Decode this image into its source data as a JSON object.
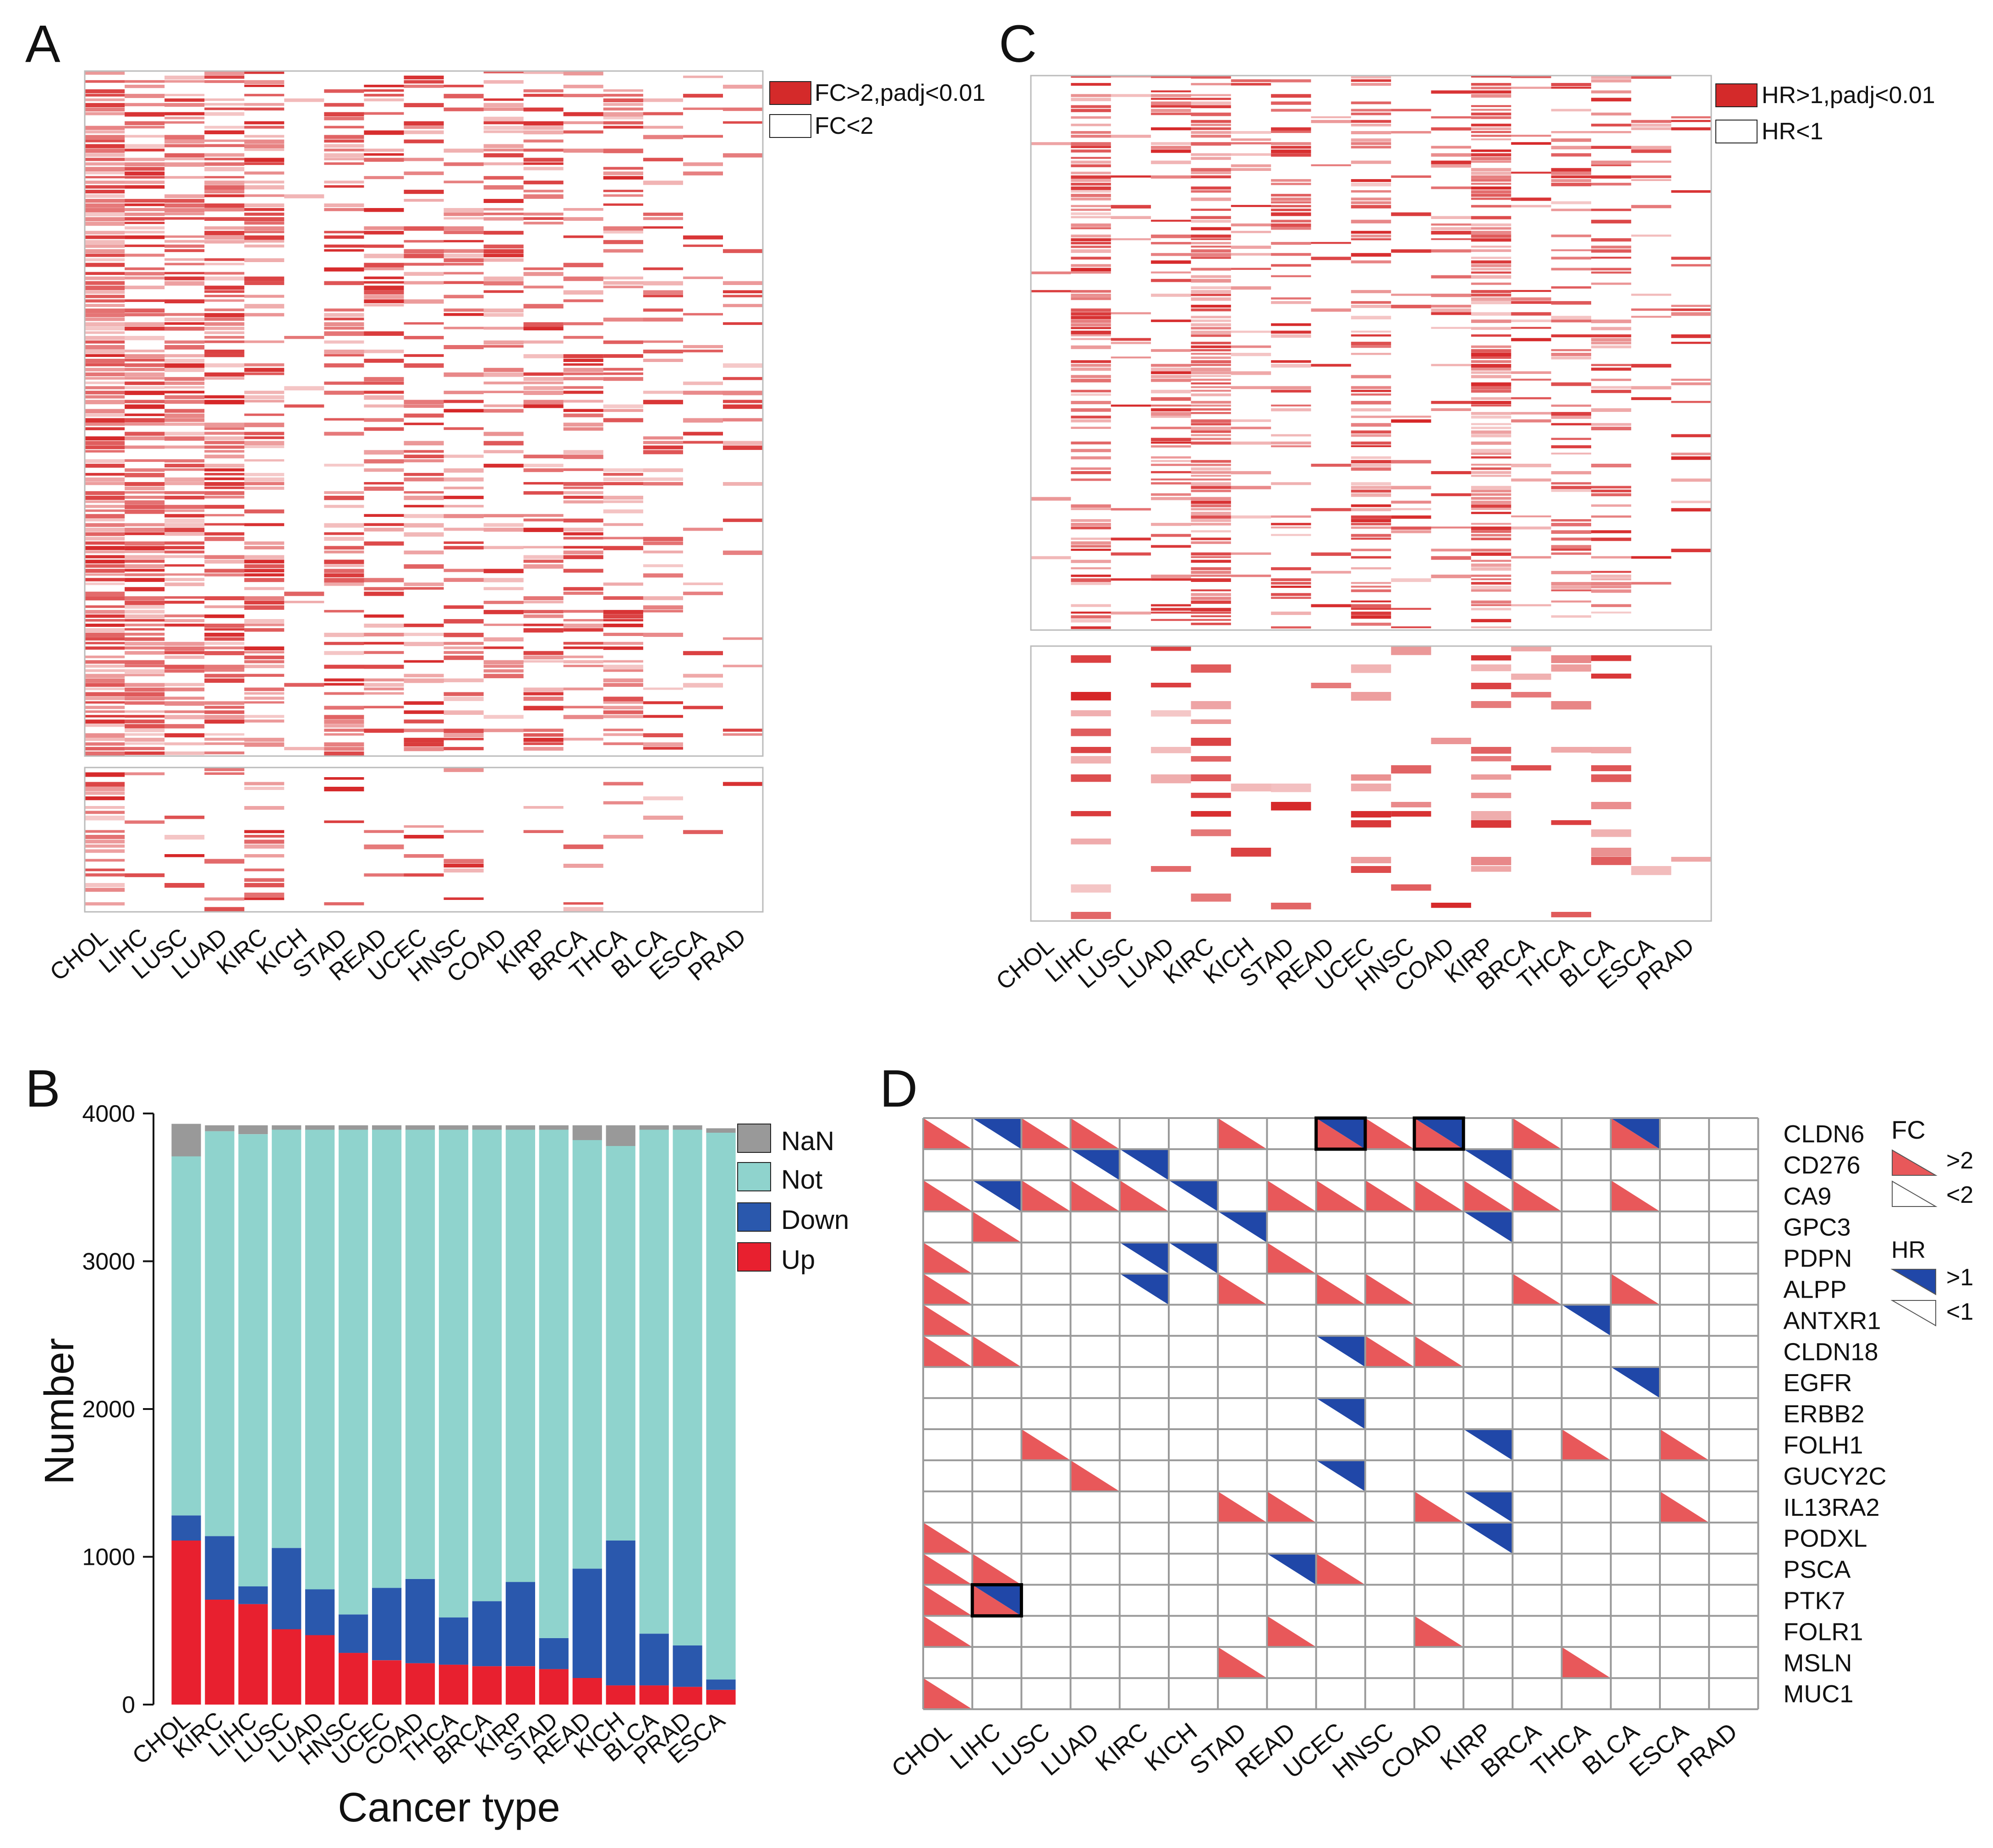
{
  "colors": {
    "red": "#d42a2a",
    "heat_red": "#d62728",
    "blue": "#2a58ad",
    "teal": "#8fd3cd",
    "gray": "#999999",
    "tri_red": "#e8585a",
    "tri_blue": "#2047a8",
    "grid": "#9a9a9a"
  },
  "panels": {
    "A": {
      "letter": "A",
      "legend": [
        "FC>2,padj<0.01",
        "FC<2"
      ]
    },
    "C": {
      "letter": "C",
      "legend": [
        "HR>1,padj<0.01",
        "HR<1"
      ]
    },
    "B": {
      "letter": "B",
      "ylabel": "Number",
      "xlabel": "Cancer type",
      "legend": [
        "NaN",
        "Not",
        "Down",
        "Up"
      ]
    },
    "D": {
      "letter": "D",
      "legend_fc_title": "FC",
      "legend_fc": [
        ">2",
        "<2"
      ],
      "legend_hr_title": "HR",
      "legend_hr": [
        ">1",
        "<1"
      ]
    }
  },
  "chart_data": [
    {
      "id": "A",
      "type": "heatmap",
      "title": "",
      "categories": [
        "CHOL",
        "LIHC",
        "LUSC",
        "LUAD",
        "KIRC",
        "KICH",
        "STAD",
        "READ",
        "UCEC",
        "HNSC",
        "COAD",
        "KIRP",
        "BRCA",
        "THCA",
        "BLCA",
        "ESCA",
        "PRAD"
      ],
      "rows_top": 150,
      "rows_bottom": 30,
      "density_top": [
        0.85,
        0.75,
        0.65,
        0.7,
        0.55,
        0.08,
        0.45,
        0.4,
        0.38,
        0.4,
        0.35,
        0.35,
        0.4,
        0.4,
        0.25,
        0.2,
        0.12
      ],
      "density_bottom": [
        0.6,
        0.12,
        0.08,
        0.12,
        0.45,
        0.02,
        0.06,
        0.08,
        0.1,
        0.12,
        0.05,
        0.05,
        0.12,
        0.1,
        0.05,
        0.05,
        0.06
      ],
      "legend": [
        "FC>2,padj<0.01",
        "FC<2"
      ]
    },
    {
      "id": "C",
      "type": "heatmap",
      "title": "",
      "categories": [
        "CHOL",
        "LIHC",
        "LUSC",
        "LUAD",
        "KIRC",
        "KICH",
        "STAD",
        "READ",
        "UCEC",
        "HNSC",
        "COAD",
        "KIRP",
        "BRCA",
        "THCA",
        "BLCA",
        "ESCA",
        "PRAD"
      ],
      "rows_top": 150,
      "rows_bottom": 30,
      "density_top": [
        0.02,
        0.65,
        0.05,
        0.35,
        0.7,
        0.2,
        0.3,
        0.12,
        0.55,
        0.15,
        0.2,
        0.75,
        0.15,
        0.3,
        0.35,
        0.12,
        0.1
      ],
      "density_bottom": [
        0.01,
        0.3,
        0.02,
        0.2,
        0.4,
        0.1,
        0.15,
        0.06,
        0.3,
        0.1,
        0.1,
        0.4,
        0.08,
        0.15,
        0.2,
        0.06,
        0.05
      ],
      "legend": [
        "HR>1,padj<0.01",
        "HR<1"
      ]
    },
    {
      "id": "B",
      "type": "bar",
      "stacked": true,
      "title": "",
      "xlabel": "Cancer type",
      "ylabel": "Number",
      "ylim": [
        0,
        4000
      ],
      "yticks": [
        0,
        1000,
        2000,
        3000,
        4000
      ],
      "categories": [
        "CHOL",
        "KIRC",
        "LIHC",
        "LUSC",
        "LUAD",
        "HNSC",
        "UCEC",
        "COAD",
        "THCA",
        "BRCA",
        "KIRP",
        "STAD",
        "READ",
        "KICH",
        "BLCA",
        "PRAD",
        "ESCA"
      ],
      "series": [
        {
          "name": "Up",
          "values": [
            1110,
            710,
            680,
            510,
            470,
            350,
            300,
            280,
            270,
            260,
            260,
            240,
            180,
            130,
            130,
            120,
            100
          ]
        },
        {
          "name": "Down",
          "values": [
            170,
            430,
            120,
            550,
            310,
            260,
            490,
            570,
            320,
            440,
            570,
            210,
            740,
            980,
            350,
            280,
            70
          ]
        },
        {
          "name": "Not",
          "values": [
            2430,
            2740,
            3060,
            2830,
            3110,
            3280,
            3100,
            3040,
            3300,
            3190,
            3060,
            3440,
            2900,
            2670,
            3410,
            3490,
            3700
          ]
        },
        {
          "name": "NaN",
          "values": [
            220,
            40,
            60,
            30,
            30,
            30,
            30,
            30,
            30,
            30,
            30,
            30,
            100,
            140,
            30,
            30,
            30
          ]
        }
      ],
      "legend": [
        "NaN",
        "Not",
        "Down",
        "Up"
      ]
    },
    {
      "id": "D",
      "type": "table",
      "title": "",
      "columns": [
        "CHOL",
        "LIHC",
        "LUSC",
        "LUAD",
        "KIRC",
        "KICH",
        "STAD",
        "READ",
        "UCEC",
        "HNSC",
        "COAD",
        "KIRP",
        "BRCA",
        "THCA",
        "BLCA",
        "ESCA",
        "PRAD"
      ],
      "rows": [
        "CLDN6",
        "CD276",
        "CA9",
        "GPC3",
        "PDPN",
        "ALPP",
        "ANTXR1",
        "CLDN18",
        "EGFR",
        "ERBB2",
        "FOLH1",
        "GUCY2C",
        "IL13RA2",
        "PODXL",
        "PSCA",
        "PTK7",
        "FOLR1",
        "MSLN",
        "MUC1"
      ],
      "fc_up": [
        [
          0,
          2,
          3,
          6,
          8,
          9,
          10,
          12,
          14
        ],
        [],
        [
          0,
          2,
          3,
          4,
          7,
          8,
          9,
          10,
          11,
          12,
          14
        ],
        [
          1
        ],
        [
          0,
          7
        ],
        [
          0,
          6,
          8,
          9,
          12,
          14
        ],
        [
          0
        ],
        [
          0,
          1,
          9,
          10
        ],
        [],
        [],
        [
          2,
          13,
          15
        ],
        [
          3
        ],
        [
          6,
          7,
          10,
          15
        ],
        [
          0
        ],
        [
          0,
          1,
          8
        ],
        [
          0,
          1
        ],
        [
          0,
          7,
          10
        ],
        [
          6,
          13
        ],
        [
          0
        ]
      ],
      "hr_up": [
        [
          1,
          8,
          10,
          14
        ],
        [
          3,
          4,
          11
        ],
        [
          1,
          5
        ],
        [
          6,
          11
        ],
        [
          4,
          5
        ],
        [
          4
        ],
        [
          13
        ],
        [
          8
        ],
        [
          14
        ],
        [
          8
        ],
        [
          11
        ],
        [
          8
        ],
        [
          11
        ],
        [
          11
        ],
        [
          7
        ],
        [
          1
        ],
        [],
        [],
        []
      ],
      "highlight": [
        [
          0,
          8
        ],
        [
          0,
          10
        ],
        [
          15,
          1
        ]
      ],
      "legend_fc": [
        ">2",
        "<2"
      ],
      "legend_hr": [
        ">1",
        "<1"
      ]
    }
  ]
}
